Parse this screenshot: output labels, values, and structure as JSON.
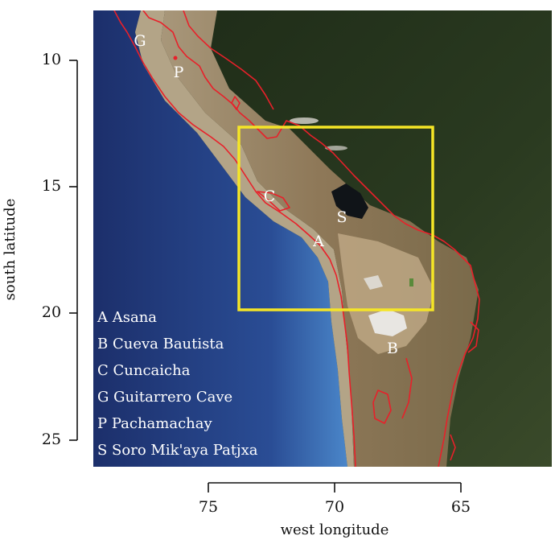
{
  "map": {
    "colors": {
      "ocean_deep": "#1c2f6b",
      "ocean_shelf": "#4a86c9",
      "coast_strip": "#a89b82",
      "andes": "#8f7a5b",
      "highland_light": "#b39b77",
      "lowland_forest": "#24331c",
      "contour": "#e8202a",
      "study_box": "#f5e526",
      "salt_flat": "#e8e6e2",
      "lake": "#101418"
    },
    "region_box": {
      "lon": [
        64,
        75.8
      ],
      "lat": [
        12.5,
        19.9
      ]
    },
    "sites": [
      {
        "code": "G",
        "lon": 76.5,
        "lat": 8.9
      },
      {
        "code": "P",
        "lon": 75.8,
        "lat": 10.2
      },
      {
        "code": "C",
        "lon": 72.5,
        "lat": 15.3
      },
      {
        "code": "S",
        "lon": 68.3,
        "lat": 16.5
      },
      {
        "code": "A",
        "lon": 70.8,
        "lat": 17.6
      },
      {
        "code": "B",
        "lon": 67.1,
        "lat": 21.4
      }
    ],
    "legend": [
      "A Asana",
      "B Cueva Bautista",
      "C Cuncaicha",
      "G Guitarrero Cave",
      "P Pachamachay",
      "S Soro Mik'aya Patjxa"
    ]
  },
  "axes": {
    "y_label": "south latitude",
    "x_label": "west longitude",
    "y_ticks": [
      "10",
      "15",
      "20",
      "25"
    ],
    "x_ticks": [
      "75",
      "70",
      "65"
    ]
  }
}
